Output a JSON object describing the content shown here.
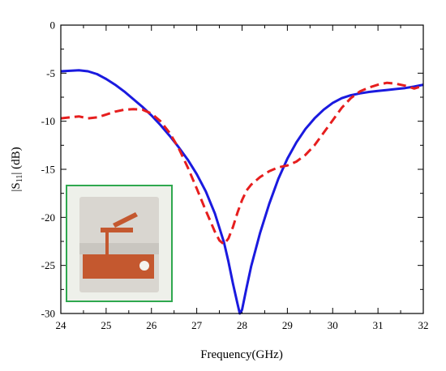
{
  "chart_data": {
    "type": "line",
    "title": "",
    "xlabel": "Frequency(GHz)",
    "ylabel": "|S11| (dB)",
    "ylabel_main": "|S",
    "ylabel_sub": "11",
    "ylabel_rest": "| (dB)",
    "xlim": [
      24,
      32
    ],
    "ylim": [
      -30,
      0
    ],
    "xticks": [
      "24",
      "25",
      "26",
      "27",
      "28",
      "29",
      "30",
      "31",
      "32"
    ],
    "yticks": [
      "0",
      "-5",
      "-10",
      "-15",
      "-20",
      "-25",
      "-30"
    ],
    "grid": false,
    "legend": "none",
    "series": [
      {
        "color": "#1a1adf",
        "style": "solid",
        "x": [
          24.0,
          24.2,
          24.4,
          24.6,
          24.8,
          25.0,
          25.2,
          25.4,
          25.6,
          25.8,
          26.0,
          26.2,
          26.4,
          26.6,
          26.8,
          27.0,
          27.2,
          27.4,
          27.6,
          27.7,
          27.8,
          27.9,
          27.95,
          28.0,
          28.1,
          28.2,
          28.4,
          28.6,
          28.8,
          29.0,
          29.2,
          29.4,
          29.6,
          29.8,
          30.0,
          30.2,
          30.4,
          30.6,
          30.8,
          31.0,
          31.2,
          31.4,
          31.6,
          31.8,
          32.0
        ],
        "values": [
          -4.8,
          -4.75,
          -4.7,
          -4.8,
          -5.1,
          -5.6,
          -6.2,
          -6.9,
          -7.7,
          -8.5,
          -9.4,
          -10.4,
          -11.5,
          -12.7,
          -14.0,
          -15.5,
          -17.3,
          -19.6,
          -22.6,
          -24.6,
          -26.9,
          -29.0,
          -30.0,
          -29.6,
          -27.3,
          -25.1,
          -21.6,
          -18.6,
          -16.0,
          -13.9,
          -12.2,
          -10.8,
          -9.7,
          -8.8,
          -8.1,
          -7.6,
          -7.3,
          -7.1,
          -6.95,
          -6.85,
          -6.75,
          -6.65,
          -6.55,
          -6.4,
          -6.2
        ]
      },
      {
        "color": "#e61e1e",
        "style": "dashed",
        "x": [
          24.0,
          24.2,
          24.4,
          24.6,
          24.8,
          25.0,
          25.2,
          25.4,
          25.6,
          25.8,
          26.0,
          26.2,
          26.4,
          26.6,
          26.8,
          27.0,
          27.2,
          27.4,
          27.5,
          27.6,
          27.7,
          27.8,
          27.9,
          28.0,
          28.1,
          28.2,
          28.4,
          28.6,
          28.8,
          29.0,
          29.2,
          29.4,
          29.6,
          29.8,
          30.0,
          30.2,
          30.4,
          30.6,
          30.8,
          31.0,
          31.2,
          31.4,
          31.6,
          31.8,
          32.0
        ],
        "values": [
          -9.7,
          -9.6,
          -9.5,
          -9.7,
          -9.6,
          -9.3,
          -9.0,
          -8.8,
          -8.75,
          -8.8,
          -9.2,
          -10.0,
          -11.2,
          -12.8,
          -14.8,
          -17.0,
          -19.3,
          -21.5,
          -22.4,
          -22.8,
          -22.2,
          -21.0,
          -19.5,
          -18.2,
          -17.2,
          -16.6,
          -15.8,
          -15.2,
          -14.8,
          -14.6,
          -14.2,
          -13.5,
          -12.5,
          -11.2,
          -9.9,
          -8.6,
          -7.6,
          -6.9,
          -6.5,
          -6.2,
          -6.0,
          -6.1,
          -6.3,
          -6.6,
          -6.3
        ]
      }
    ],
    "inset_photo": {
      "border_color": "#2fa84f",
      "substrate_color": "#d9d6d0",
      "copper_color": "#c4582f"
    }
  }
}
